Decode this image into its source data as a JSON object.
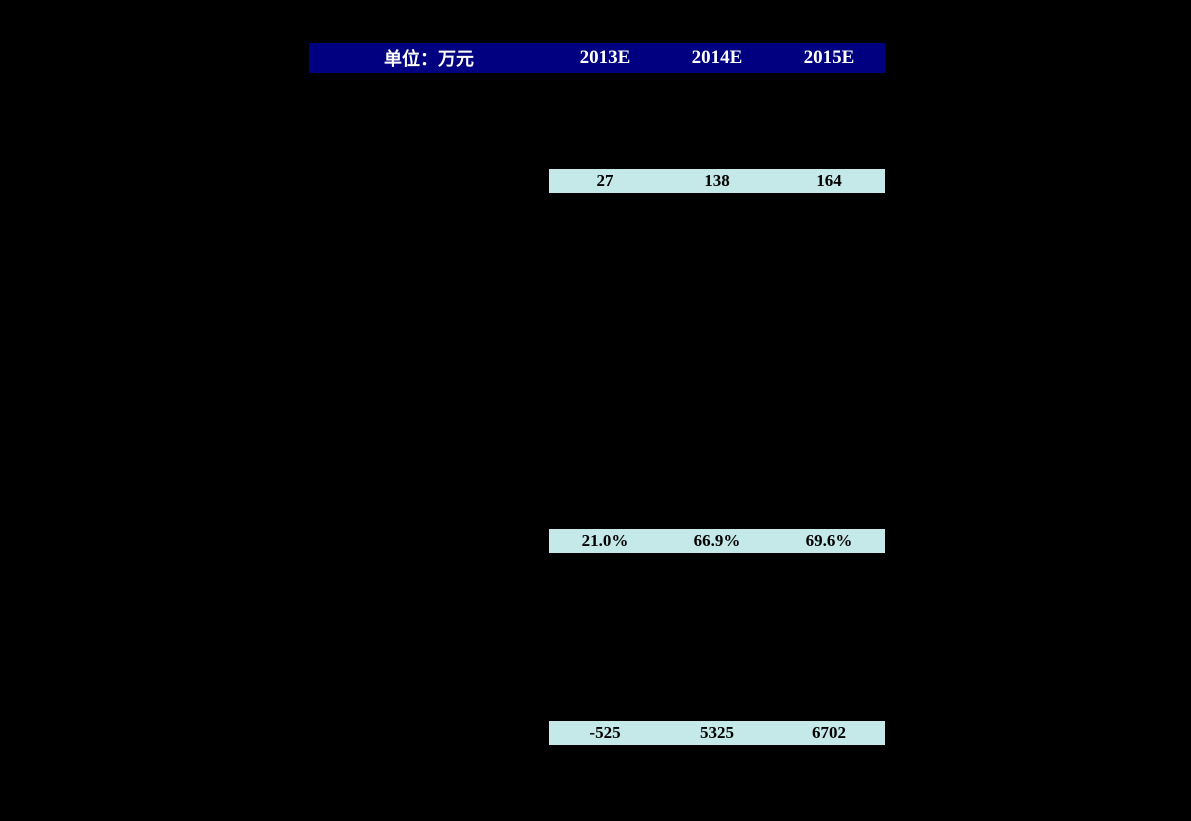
{
  "header": {
    "label": "单位：万元",
    "cols": [
      "2013E",
      "2014E",
      "2015E"
    ]
  },
  "rows": [
    {
      "highlight": false,
      "values": [
        "",
        "",
        ""
      ]
    },
    {
      "highlight": false,
      "values": [
        "",
        "",
        ""
      ]
    },
    {
      "highlight": false,
      "values": [
        "",
        "",
        ""
      ]
    },
    {
      "highlight": false,
      "values": [
        "",
        "",
        ""
      ]
    },
    {
      "highlight": true,
      "values": [
        "27",
        "138",
        "164"
      ]
    },
    {
      "highlight": false,
      "values": [
        "",
        "",
        ""
      ]
    },
    {
      "highlight": false,
      "values": [
        "",
        "",
        ""
      ]
    },
    {
      "highlight": false,
      "values": [
        "",
        "",
        ""
      ]
    },
    {
      "highlight": false,
      "values": [
        "",
        "",
        ""
      ]
    },
    {
      "highlight": false,
      "values": [
        "",
        "",
        ""
      ]
    },
    {
      "highlight": false,
      "values": [
        "",
        "",
        ""
      ]
    },
    {
      "highlight": false,
      "values": [
        "",
        "",
        ""
      ]
    },
    {
      "highlight": false,
      "values": [
        "",
        "",
        ""
      ]
    },
    {
      "highlight": false,
      "values": [
        "",
        "",
        ""
      ]
    },
    {
      "highlight": false,
      "values": [
        "",
        "",
        ""
      ]
    },
    {
      "highlight": false,
      "values": [
        "",
        "",
        ""
      ]
    },
    {
      "highlight": false,
      "values": [
        "",
        "",
        ""
      ]
    },
    {
      "highlight": false,
      "values": [
        "",
        "",
        ""
      ]
    },
    {
      "highlight": false,
      "values": [
        "",
        "",
        ""
      ]
    },
    {
      "highlight": true,
      "values": [
        "21.0%",
        "66.9%",
        "69.6%"
      ]
    },
    {
      "highlight": false,
      "values": [
        "",
        "",
        ""
      ]
    },
    {
      "highlight": false,
      "values": [
        "",
        "",
        ""
      ]
    },
    {
      "highlight": false,
      "values": [
        "",
        "",
        ""
      ]
    },
    {
      "highlight": false,
      "values": [
        "",
        "",
        ""
      ]
    },
    {
      "highlight": false,
      "values": [
        "",
        "",
        ""
      ]
    },
    {
      "highlight": false,
      "values": [
        "",
        "",
        ""
      ]
    },
    {
      "highlight": false,
      "values": [
        "",
        "",
        ""
      ]
    },
    {
      "highlight": true,
      "values": [
        "-525",
        "5325",
        "6702"
      ]
    }
  ],
  "colors": {
    "header_bg": "#000080",
    "highlight_bg": "#c5e8e8",
    "page_bg": "#000000",
    "header_text": "#ffffff",
    "value_text": "#000000"
  }
}
